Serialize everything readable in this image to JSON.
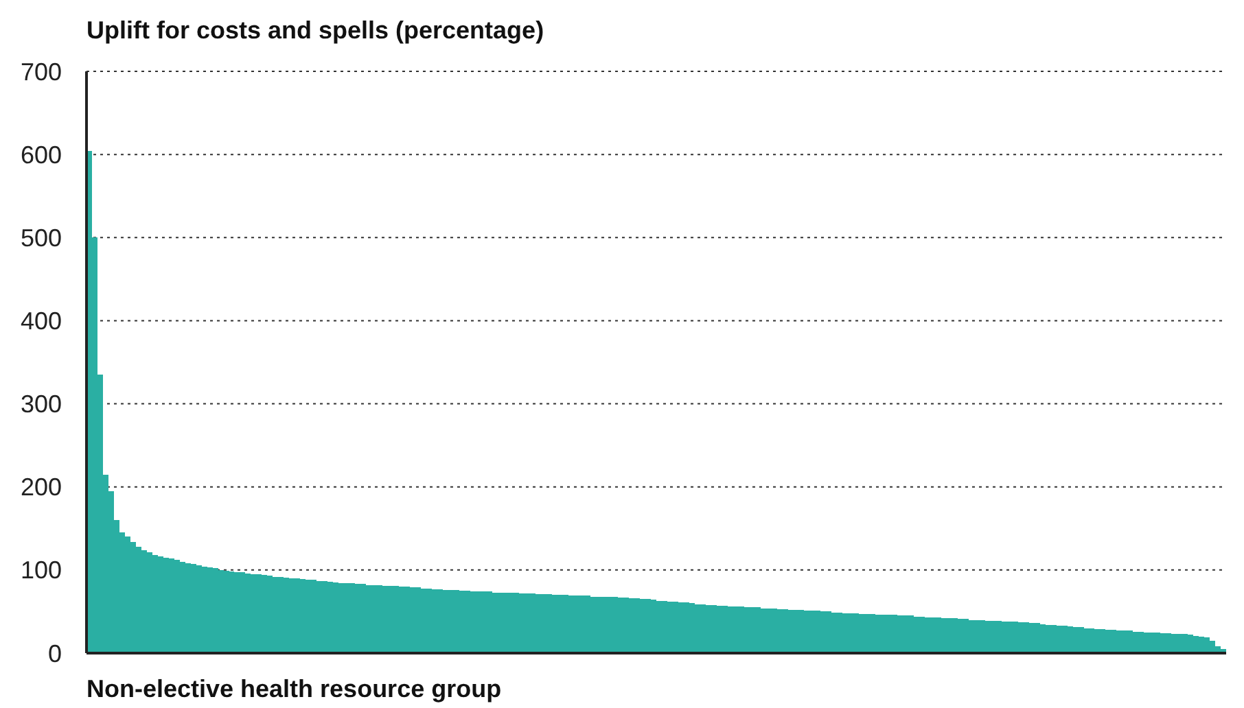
{
  "chart_data": {
    "type": "bar",
    "title": "Uplift for costs and spells (percentage)",
    "xlabel": "Non-elective health resource group",
    "categories": [
      null,
      null,
      null,
      null,
      null,
      null,
      null,
      null,
      null,
      null,
      null,
      null,
      null,
      null,
      null,
      null,
      null,
      null,
      null,
      null,
      null,
      null,
      null,
      null,
      null,
      null,
      null,
      null,
      null,
      null,
      null,
      null,
      null,
      null,
      null,
      null,
      null,
      null,
      null,
      null,
      null,
      null,
      null,
      null,
      null,
      null,
      null,
      null,
      null,
      null,
      null,
      null,
      null,
      null,
      null,
      null,
      null,
      null,
      null,
      null,
      null,
      null,
      null,
      null,
      null,
      null,
      null,
      null,
      null,
      null,
      null,
      null,
      null,
      null,
      null,
      null,
      null,
      null,
      null,
      null,
      null,
      null,
      null,
      null,
      null,
      null,
      null,
      null,
      null,
      null,
      null,
      null,
      null,
      null,
      null,
      null,
      null,
      null,
      null,
      null,
      null,
      null,
      null,
      null,
      null,
      null,
      null,
      null,
      null,
      null,
      null,
      null,
      null,
      null,
      null,
      null,
      null,
      null,
      null,
      null,
      null,
      null,
      null,
      null,
      null,
      null,
      null,
      null,
      null,
      null,
      null,
      null,
      null,
      null,
      null,
      null,
      null,
      null,
      null,
      null,
      null,
      null,
      null,
      null,
      null,
      null,
      null,
      null,
      null,
      null,
      null,
      null,
      null,
      null,
      null,
      null,
      null,
      null,
      null,
      null,
      null,
      null,
      null,
      null,
      null,
      null,
      null,
      null,
      null,
      null,
      null,
      null,
      null,
      null,
      null,
      null,
      null,
      null,
      null,
      null,
      null,
      null,
      null,
      null,
      null,
      null,
      null,
      null,
      null,
      null,
      null,
      null,
      null,
      null,
      null,
      null,
      null,
      null,
      null,
      null,
      null,
      null,
      null,
      null,
      null,
      null,
      null,
      null
    ],
    "values": [
      604,
      500,
      335,
      215,
      195,
      160,
      145,
      140,
      134,
      128,
      124,
      121,
      118,
      116,
      115,
      114,
      112,
      110,
      108,
      107,
      106,
      104,
      103,
      102,
      100,
      99,
      98,
      97,
      97,
      96,
      95,
      95,
      94,
      93,
      92,
      92,
      91,
      90,
      90,
      89,
      88,
      88,
      87,
      87,
      86,
      85,
      84,
      84,
      84,
      83,
      83,
      82,
      82,
      82,
      81,
      81,
      81,
      80,
      80,
      79,
      79,
      78,
      78,
      77,
      77,
      76,
      76,
      76,
      75,
      75,
      74,
      74,
      74,
      74,
      73,
      73,
      73,
      73,
      73,
      72,
      72,
      72,
      71,
      71,
      71,
      70,
      70,
      70,
      69,
      69,
      69,
      69,
      68,
      68,
      68,
      68,
      68,
      67,
      67,
      66,
      66,
      65,
      65,
      64,
      63,
      63,
      62,
      62,
      61,
      61,
      60,
      59,
      59,
      58,
      58,
      57,
      57,
      56,
      56,
      56,
      55,
      55,
      55,
      54,
      54,
      54,
      53,
      53,
      52,
      52,
      52,
      51,
      51,
      51,
      50,
      50,
      49,
      49,
      48,
      48,
      48,
      47,
      47,
      47,
      46,
      46,
      46,
      46,
      45,
      45,
      45,
      44,
      44,
      43,
      43,
      43,
      42,
      42,
      42,
      41,
      41,
      40,
      40,
      40,
      39,
      39,
      39,
      38,
      38,
      38,
      37,
      37,
      36,
      36,
      35,
      34,
      34,
      33,
      33,
      32,
      31,
      31,
      30,
      30,
      29,
      29,
      28,
      28,
      27,
      27,
      27,
      26,
      26,
      25,
      25,
      25,
      24,
      24,
      23,
      23,
      23,
      22,
      21,
      20,
      19,
      15,
      8,
      5
    ],
    "color": "#2aafa3",
    "ylim": [
      0,
      700
    ],
    "yticks": [
      0,
      100,
      200,
      300,
      400,
      500,
      600,
      700
    ],
    "grid": "y"
  }
}
